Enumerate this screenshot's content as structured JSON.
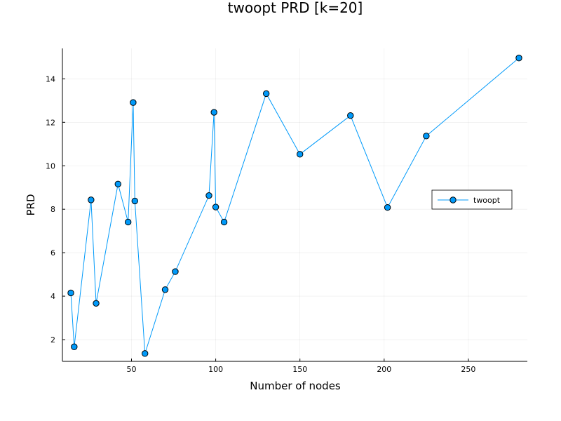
{
  "chart_data": {
    "type": "line",
    "title": "twoopt PRD [k=20]",
    "xlabel": "Number of nodes",
    "ylabel": "PRD",
    "xlim": [
      9,
      285
    ],
    "ylim": [
      1.0,
      15.4
    ],
    "xticks": [
      50,
      100,
      150,
      200,
      250
    ],
    "yticks": [
      2,
      4,
      6,
      8,
      10,
      12,
      14
    ],
    "grid": true,
    "legend_position": "right",
    "series": [
      {
        "name": "twoopt",
        "color": "#009AFA",
        "marker": "circle",
        "x": [
          14,
          16,
          26,
          29,
          42,
          48,
          51,
          52,
          58,
          70,
          76,
          96,
          99,
          100,
          105,
          130,
          150,
          180,
          202,
          225,
          280
        ],
        "y": [
          4.15,
          1.67,
          8.43,
          3.67,
          9.16,
          7.41,
          12.91,
          8.38,
          1.36,
          4.3,
          5.13,
          8.63,
          12.46,
          8.1,
          7.41,
          13.32,
          10.53,
          12.31,
          8.08,
          11.37,
          14.96
        ]
      }
    ]
  }
}
